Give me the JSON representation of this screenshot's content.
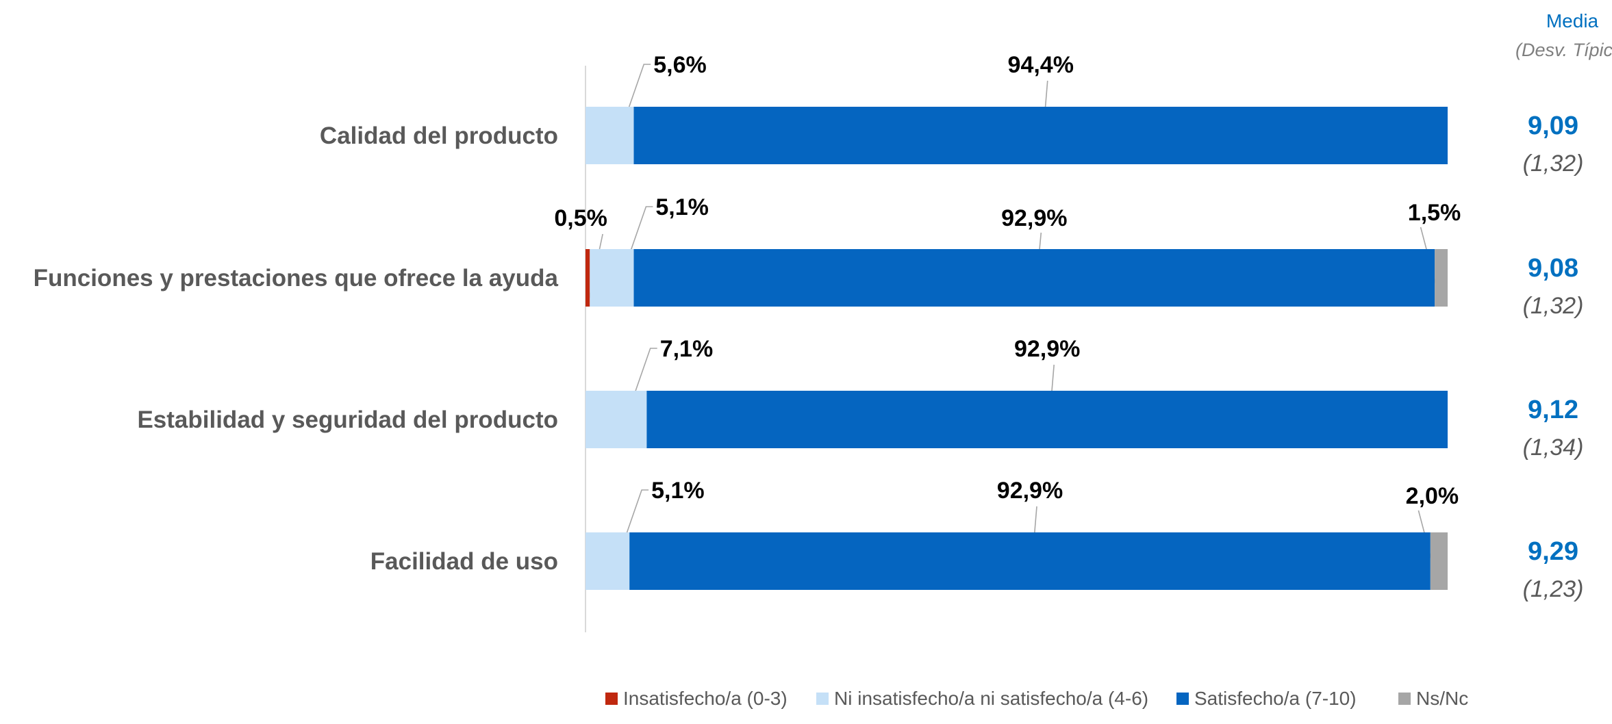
{
  "colors": {
    "insat": "#c0280f",
    "ni": "#c5e0f7",
    "sat": "#0565c0",
    "nsnc": "#a6a6a6",
    "mean": "#0070c0",
    "text": "#595959"
  },
  "header": {
    "mean_label": "Media",
    "sd_label": "(Desv. Típica)"
  },
  "chart_data": {
    "type": "bar",
    "orientation": "horizontal",
    "stacked": true,
    "xlim": [
      0,
      100
    ],
    "categories": [
      "Calidad del producto",
      "Funciones y prestaciones que ofrece la ayuda",
      "Estabilidad y seguridad del producto",
      "Facilidad de uso"
    ],
    "series": [
      {
        "name": "Insatisfecho/a (0-3)",
        "color_key": "insat",
        "values": [
          0,
          0.5,
          0,
          0
        ],
        "labels": [
          "",
          "0,5%",
          "",
          ""
        ]
      },
      {
        "name": "Ni insatisfecho/a ni satisfecho/a (4-6)",
        "color_key": "ni",
        "values": [
          5.6,
          5.1,
          7.1,
          5.1
        ],
        "labels": [
          "5,6%",
          "5,1%",
          "7,1%",
          "5,1%"
        ]
      },
      {
        "name": "Satisfecho/a (7-10)",
        "color_key": "sat",
        "values": [
          94.4,
          92.9,
          92.9,
          92.9
        ],
        "labels": [
          "94,4%",
          "92,9%",
          "92,9%",
          "92,9%"
        ]
      },
      {
        "name": "Ns/Nc",
        "color_key": "nsnc",
        "values": [
          0,
          1.5,
          0,
          2.0
        ],
        "labels": [
          "",
          "1,5%",
          "",
          "2,0%"
        ]
      }
    ],
    "means": [
      "9,09",
      "9,08",
      "9,12",
      "9,29"
    ],
    "std_devs": [
      "(1,32)",
      "(1,32)",
      "(1,34)",
      "(1,23)"
    ],
    "legend_position": "bottom",
    "grid": false
  }
}
